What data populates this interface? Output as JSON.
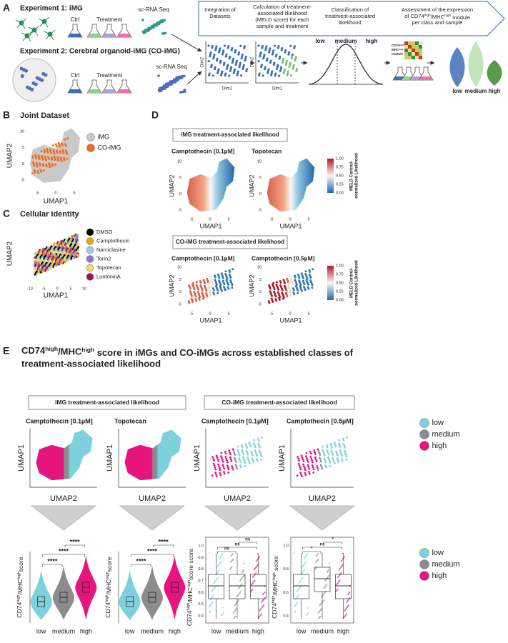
{
  "A": {
    "label": "A",
    "exp1": {
      "title": "Experiment 1: iMG",
      "ctrl": "Ctrl",
      "treatment": "Treatment",
      "seq": "sc-RNA Seq"
    },
    "exp2": {
      "title": "Experiment 2: Cerebral organoid-iMG (CO-iMG)",
      "ctrl": "Ctrl",
      "treatment": "Treatment",
      "seq": "sc-RNA Seq"
    },
    "steps": [
      [
        "Integration of",
        "Datasets"
      ],
      [
        "Calculation of treatment-",
        "associated likelihood",
        "(MELD score) for each",
        "sample and treatment"
      ],
      [
        "Classification of",
        "treatment-associated",
        "likelihood"
      ],
      [
        "Assessment of the expression",
        [
          {
            "t": "of CD74"
          },
          {
            "sup": "high"
          },
          {
            "t": "/MHC"
          },
          {
            "sup": "high"
          },
          {
            "t": " module"
          }
        ],
        "per class and sample"
      ]
    ],
    "dim_plots": [
      {
        "x": "Dim1",
        "y": "Dim2"
      },
      {
        "x": "Dim1",
        "y": "Dim2"
      }
    ],
    "classes": [
      "low",
      "medium",
      "high"
    ],
    "module": [
      [
        {
          "t": "CD74"
        },
        {
          "sup": "high"
        },
        {
          "t": "/"
        }
      ],
      [
        {
          "t": "MHC"
        },
        {
          "sup": "high"
        }
      ],
      "module"
    ],
    "violin_classes": [
      "low",
      "medium",
      "high"
    ]
  },
  "B": {
    "label": "B",
    "title": "Joint Dataset",
    "x_label": "UMAP1",
    "y_label": "UMAP2",
    "xticks": [
      -5,
      0,
      5
    ],
    "yticks": [
      10,
      5,
      0,
      -5
    ],
    "legend": [
      {
        "name": "iMG",
        "color": "#c9c9c9"
      },
      {
        "name": "CO-iMG",
        "color": "#f26a1b"
      }
    ]
  },
  "C": {
    "label": "C",
    "title": "Cellular Identity",
    "x_label": "UMAP1",
    "y_label": "UMAP2",
    "xticks": [
      -10,
      -5,
      0,
      5,
      10
    ],
    "legend": [
      {
        "name": "DMSO",
        "color": "#000000"
      },
      {
        "name": "Camptothecin",
        "color": "#e8a317"
      },
      {
        "name": "Narciclasine",
        "color": "#9ecae1"
      },
      {
        "name": "Torin2",
        "color": "#8f78c8"
      },
      {
        "name": "Topotecan",
        "color": "#e8dc6a"
      },
      {
        "name": "LuotoninA",
        "color": "#a0135a"
      }
    ]
  },
  "D": {
    "label": "D",
    "groups": [
      {
        "header": "iMG treatment-associated likelihood",
        "plots": [
          "Camptothecin [0.1µM]",
          "Topotecan"
        ]
      },
      {
        "header": "CO-iMG treatment-associated likelihood",
        "plots": [
          "Camptothecin [0.1µM]",
          "Camptothecin [0.5µM]"
        ]
      }
    ],
    "x_label": "UMAP1",
    "y_label": "UMAP2",
    "xticks": [
      -5,
      0,
      5
    ],
    "yticks": [
      10,
      5,
      0,
      -5
    ],
    "colorbar": {
      "title": [
        "MELD Control-",
        "normalized Likelihood"
      ],
      "ticks": [
        "1.00",
        "0.75",
        "0.50",
        "0.25",
        "0.00"
      ]
    }
  },
  "E": {
    "label": "E",
    "title": [
      [
        {
          "t": "CD74"
        },
        {
          "sup": "high"
        },
        {
          "t": "/MHC"
        },
        {
          "sup": "high"
        },
        {
          "t": " score in iMGs and CO-iMGs across established classes of"
        }
      ],
      "treatment-associated likelihood"
    ],
    "groups": [
      {
        "header": "iMG treatment-associated likelihood",
        "plots": [
          {
            "title": "Camptothecin [0.1µM]",
            "kind": "violin",
            "y_label": [
              {
                "t": "CD74"
              },
              {
                "sup": "high"
              },
              {
                "t": "/MHC"
              },
              {
                "sup": "high"
              },
              {
                "t": "score"
              }
            ],
            "signif": [
              "****",
              "****",
              "****"
            ]
          },
          {
            "title": "Topotecan",
            "kind": "violin",
            "y_label": [
              {
                "t": "CD74"
              },
              {
                "sup": "high"
              },
              {
                "t": "/MHC"
              },
              {
                "sup": "high"
              },
              {
                "t": "score"
              }
            ],
            "signif": [
              "****",
              "****",
              "****"
            ]
          }
        ]
      },
      {
        "header": "CO-iMG treatment-associated likelihood",
        "plots": [
          {
            "title": "Camptothecin [0.1µM]",
            "kind": "box",
            "y_label": [
              {
                "t": "CD74"
              },
              {
                "sup": "high"
              },
              {
                "t": "/MHC"
              },
              {
                "sup": "high"
              },
              {
                "t": "score score"
              }
            ],
            "yticks": [
              "1.0",
              "0.9",
              "0.8",
              "0.7",
              "0.6",
              "0.5",
              "0.4"
            ],
            "signif": [
              "ns",
              "ns",
              "ns"
            ]
          },
          {
            "title": "Camptothecin [0.5µM]",
            "kind": "box",
            "y_label": [
              {
                "t": "CD74"
              },
              {
                "sup": "high"
              },
              {
                "t": "/MHC"
              },
              {
                "sup": "high"
              },
              {
                "t": " score"
              }
            ],
            "yticks": [
              "1.0",
              "0.8",
              "0.6",
              "0.4"
            ],
            "signif": [
              "*",
              "ns",
              "*"
            ]
          }
        ]
      }
    ],
    "umap_x_label": "UMAP2",
    "umap_y_label": "UMAP1",
    "classes": [
      "low",
      "medium",
      "high"
    ],
    "legend": [
      {
        "name": "low",
        "color": "#7fd0df"
      },
      {
        "name": "medium",
        "color": "#8c8c8c"
      },
      {
        "name": "high",
        "color": "#e6157e"
      }
    ]
  }
}
